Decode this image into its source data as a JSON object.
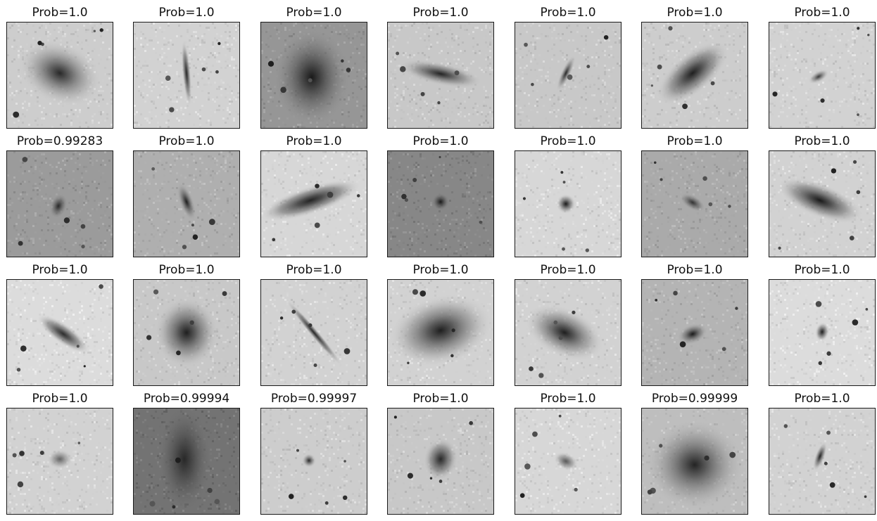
{
  "panels": [
    {
      "title": "Prob=1.0",
      "bg": 205,
      "galaxy": {
        "rx": 62,
        "ry": 44,
        "rot": 25,
        "core": 40,
        "halo": 150,
        "cx": 75,
        "cy": 72
      }
    },
    {
      "title": "Prob=1.0",
      "bg": 210,
      "galaxy": {
        "rx": 6,
        "ry": 48,
        "rot": -5,
        "core": 40,
        "halo": 120,
        "cx": 75,
        "cy": 72
      }
    },
    {
      "title": "Prob=1.0",
      "bg": 150,
      "galaxy": {
        "rx": 55,
        "ry": 70,
        "rot": 0,
        "core": 25,
        "halo": 110,
        "cx": 72,
        "cy": 78
      }
    },
    {
      "title": "Prob=1.0",
      "bg": 200,
      "galaxy": {
        "rx": 60,
        "ry": 16,
        "rot": 12,
        "core": 35,
        "halo": 130,
        "cx": 75,
        "cy": 73
      }
    },
    {
      "title": "Prob=1.0",
      "bg": 200,
      "galaxy": {
        "rx": 7,
        "ry": 28,
        "rot": 25,
        "core": 40,
        "halo": 140,
        "cx": 72,
        "cy": 72
      }
    },
    {
      "title": "Prob=1.0",
      "bg": 205,
      "galaxy": {
        "rx": 28,
        "ry": 62,
        "rot": 50,
        "core": 30,
        "halo": 120,
        "cx": 72,
        "cy": 72
      }
    },
    {
      "title": "Prob=1.0",
      "bg": 210,
      "galaxy": {
        "rx": 16,
        "ry": 8,
        "rot": -30,
        "core": 60,
        "halo": 150,
        "cx": 70,
        "cy": 77
      }
    },
    {
      "title": "Prob=0.99283",
      "bg": 155,
      "galaxy": {
        "rx": 12,
        "ry": 18,
        "rot": 20,
        "core": 40,
        "halo": 110,
        "cx": 73,
        "cy": 78
      }
    },
    {
      "title": "Prob=1.0",
      "bg": 175,
      "galaxy": {
        "rx": 10,
        "ry": 28,
        "rot": -20,
        "core": 30,
        "halo": 120,
        "cx": 75,
        "cy": 72
      }
    },
    {
      "title": "Prob=1.0",
      "bg": 215,
      "galaxy": {
        "rx": 75,
        "ry": 20,
        "rot": -18,
        "core": 35,
        "halo": 110,
        "cx": 70,
        "cy": 70
      }
    },
    {
      "title": "Prob=1.0",
      "bg": 135,
      "galaxy": {
        "rx": 12,
        "ry": 12,
        "rot": 0,
        "core": 25,
        "halo": 90,
        "cx": 75,
        "cy": 72
      }
    },
    {
      "title": "Prob=1.0",
      "bg": 215,
      "galaxy": {
        "rx": 14,
        "ry": 14,
        "rot": 0,
        "core": 25,
        "halo": 130,
        "cx": 72,
        "cy": 75
      }
    },
    {
      "title": "Prob=1.0",
      "bg": 170,
      "galaxy": {
        "rx": 20,
        "ry": 10,
        "rot": 30,
        "core": 50,
        "halo": 120,
        "cx": 72,
        "cy": 73
      }
    },
    {
      "title": "Prob=1.0",
      "bg": 210,
      "galaxy": {
        "rx": 65,
        "ry": 24,
        "rot": 22,
        "core": 25,
        "halo": 120,
        "cx": 72,
        "cy": 70
      }
    },
    {
      "title": "Prob=1.0",
      "bg": 220,
      "galaxy": {
        "rx": 45,
        "ry": 14,
        "rot": 35,
        "core": 45,
        "halo": 120,
        "cx": 80,
        "cy": 77
      }
    },
    {
      "title": "Prob=1.0",
      "bg": 200,
      "galaxy": {
        "rx": 45,
        "ry": 50,
        "rot": 0,
        "core": 30,
        "halo": 130,
        "cx": 75,
        "cy": 75
      }
    },
    {
      "title": "Prob=1.0",
      "bg": 210,
      "galaxy": {
        "rx": 6,
        "ry": 62,
        "rot": -40,
        "core": 40,
        "halo": 120,
        "cx": 75,
        "cy": 75
      }
    },
    {
      "title": "Prob=1.0",
      "bg": 210,
      "galaxy": {
        "rx": 75,
        "ry": 50,
        "rot": -15,
        "core": 30,
        "halo": 140,
        "cx": 75,
        "cy": 72
      }
    },
    {
      "title": "Prob=1.0",
      "bg": 210,
      "galaxy": {
        "rx": 60,
        "ry": 35,
        "rot": 25,
        "core": 30,
        "halo": 140,
        "cx": 70,
        "cy": 75
      }
    },
    {
      "title": "Prob=1.0",
      "bg": 180,
      "galaxy": {
        "rx": 22,
        "ry": 14,
        "rot": -20,
        "core": 25,
        "halo": 120,
        "cx": 72,
        "cy": 77
      }
    },
    {
      "title": "Prob=1.0",
      "bg": 220,
      "galaxy": {
        "rx": 10,
        "ry": 14,
        "rot": 10,
        "core": 30,
        "halo": 130,
        "cx": 75,
        "cy": 74
      }
    },
    {
      "title": "Prob=1.0",
      "bg": 210,
      "galaxy": {
        "rx": 18,
        "ry": 14,
        "rot": 0,
        "core": 100,
        "halo": 160,
        "cx": 75,
        "cy": 72
      }
    },
    {
      "title": "Prob=0.99994",
      "bg": 115,
      "galaxy": {
        "rx": 38,
        "ry": 75,
        "rot": 0,
        "core": 40,
        "halo": 90,
        "cx": 72,
        "cy": 72
      }
    },
    {
      "title": "Prob=0.99997",
      "bg": 205,
      "galaxy": {
        "rx": 10,
        "ry": 10,
        "rot": 0,
        "core": 40,
        "halo": 140,
        "cx": 68,
        "cy": 74
      }
    },
    {
      "title": "Prob=1.0",
      "bg": 200,
      "galaxy": {
        "rx": 24,
        "ry": 30,
        "rot": 10,
        "core": 40,
        "halo": 120,
        "cx": 75,
        "cy": 72
      }
    },
    {
      "title": "Prob=1.0",
      "bg": 215,
      "galaxy": {
        "rx": 18,
        "ry": 12,
        "rot": 25,
        "core": 90,
        "halo": 150,
        "cx": 72,
        "cy": 75
      }
    },
    {
      "title": "Prob=0.99999",
      "bg": 190,
      "galaxy": {
        "rx": 70,
        "ry": 65,
        "rot": 0,
        "core": 35,
        "halo": 140,
        "cx": 75,
        "cy": 80
      }
    },
    {
      "title": "Prob=1.0",
      "bg": 210,
      "galaxy": {
        "rx": 7,
        "ry": 22,
        "rot": 20,
        "core": 35,
        "halo": 130,
        "cx": 72,
        "cy": 68
      }
    }
  ]
}
